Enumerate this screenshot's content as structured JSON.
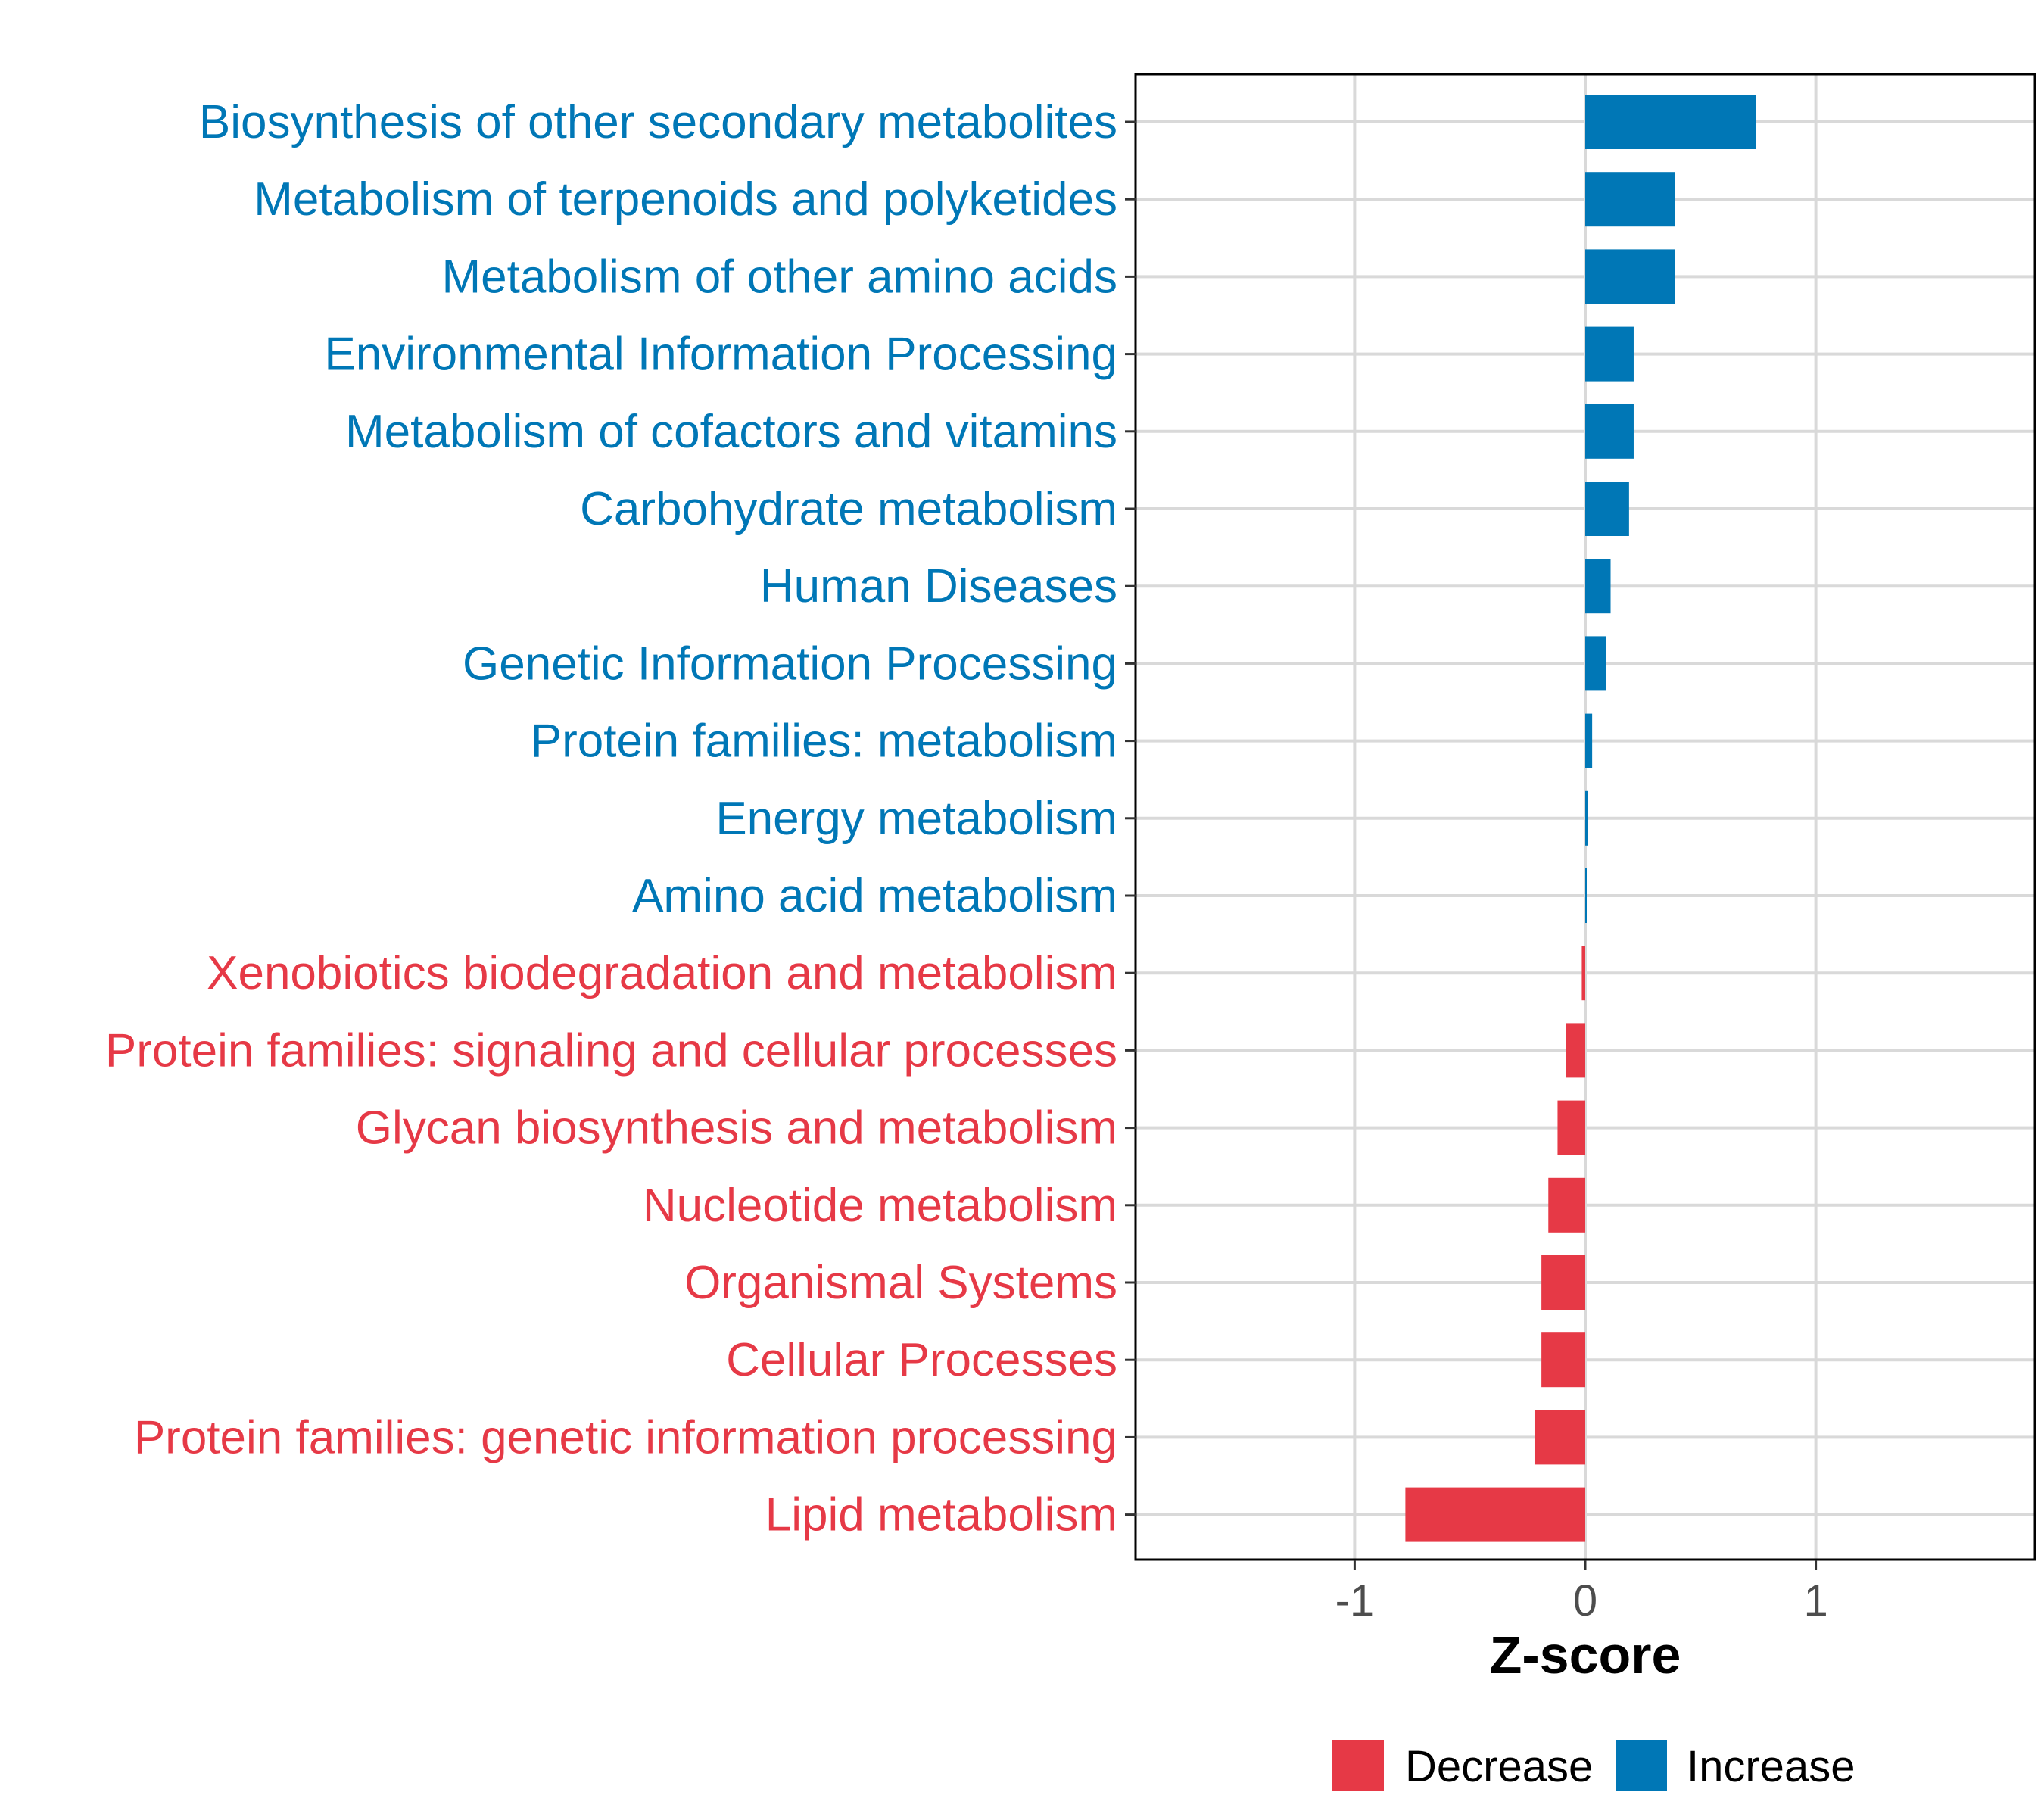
{
  "chart_data": {
    "type": "bar",
    "orientation": "horizontal",
    "xlabel": "Z-score",
    "xlim": [
      -1.95,
      1.95
    ],
    "xticks": [
      -1,
      0,
      1
    ],
    "xtick_labels": [
      "-1",
      "0",
      "1"
    ],
    "grid": true,
    "legend_position": "bottom",
    "colors": {
      "Decrease": "#E63946",
      "Increase": "#0077B6"
    },
    "categories": [
      "Biosynthesis of other secondary metabolites",
      "Metabolism of terpenoids and polyketides",
      "Metabolism of other amino acids",
      "Environmental Information Processing",
      "Metabolism of cofactors and vitamins",
      "Carbohydrate metabolism",
      "Human Diseases",
      "Genetic Information Processing",
      "Protein families: metabolism",
      "Energy metabolism",
      "Amino acid metabolism",
      "Xenobiotics biodegradation and metabolism",
      "Protein families: signaling and cellular processes",
      "Glycan biosynthesis and metabolism",
      "Nucleotide metabolism",
      "Organismal Systems",
      "Cellular Processes",
      "Protein families: genetic information processing",
      "Lipid metabolism"
    ],
    "values": [
      0.74,
      0.39,
      0.39,
      0.21,
      0.21,
      0.19,
      0.11,
      0.09,
      0.03,
      0.01,
      0.005,
      -0.015,
      -0.085,
      -0.12,
      -0.16,
      -0.19,
      -0.19,
      -0.22,
      -0.78
    ],
    "groups": [
      "Increase",
      "Increase",
      "Increase",
      "Increase",
      "Increase",
      "Increase",
      "Increase",
      "Increase",
      "Increase",
      "Increase",
      "Increase",
      "Decrease",
      "Decrease",
      "Decrease",
      "Decrease",
      "Decrease",
      "Decrease",
      "Decrease",
      "Decrease"
    ],
    "legend": [
      "Decrease",
      "Increase"
    ]
  }
}
